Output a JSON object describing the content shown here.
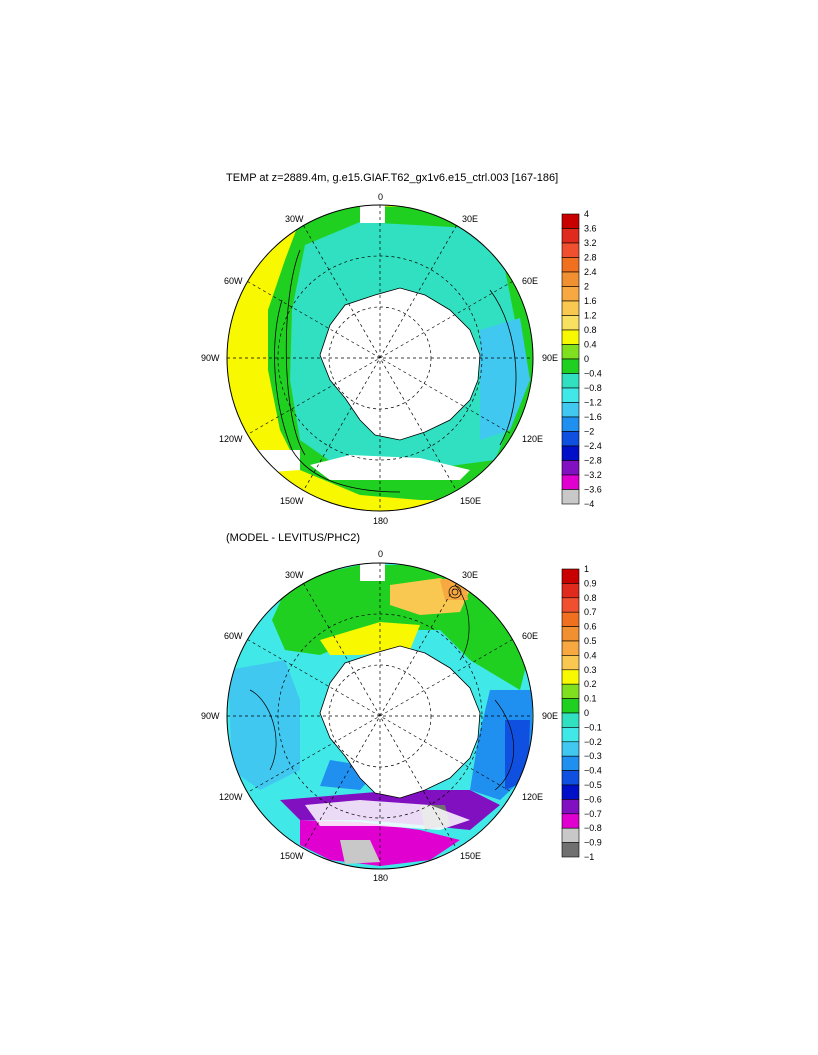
{
  "panels": [
    {
      "title": "TEMP at z=2889.4m, g.e15.GIAF.T62_gx1v6.e15_ctrl.003 [167-186]",
      "lon_labels": {
        "top": "0",
        "l30": "30W",
        "r30": "30E",
        "l60": "60W",
        "r60": "60E",
        "l90": "90W",
        "r90": "90E",
        "l120": "120W",
        "r120": "120E",
        "l150": "150W",
        "r150": "150E",
        "bottom": "180"
      },
      "colorbar": {
        "labels": [
          "4",
          "3.6",
          "3.2",
          "2.8",
          "2.4",
          "2",
          "1.6",
          "1.2",
          "0.8",
          "0.4",
          "0",
          "−0.4",
          "−0.8",
          "−1.2",
          "−1.6",
          "−2",
          "−2.4",
          "−2.8",
          "−3.2",
          "−3.6",
          "−4"
        ],
        "colors": [
          "#c80000",
          "#e02a1e",
          "#f05030",
          "#f07020",
          "#f09030",
          "#f8a840",
          "#f8c850",
          "#f8e060",
          "#f8f800",
          "#80e020",
          "#20d020",
          "#30e0c0",
          "#40e8e8",
          "#40c8f0",
          "#2090f0",
          "#1050e0",
          "#0010c8",
          "#8010c0",
          "#e000d0",
          "#c8c8c8",
          "#707070"
        ]
      }
    },
    {
      "title": "(MODEL - LEVITUS/PHC2)",
      "lon_labels": {
        "top": "0",
        "l30": "30W",
        "r30": "30E",
        "l60": "60W",
        "r60": "60E",
        "l90": "90W",
        "r90": "90E",
        "l120": "120W",
        "r120": "120E",
        "l150": "150W",
        "r150": "150E",
        "bottom": "180"
      },
      "colorbar": {
        "labels": [
          "1",
          "0.9",
          "0.8",
          "0.7",
          "0.6",
          "0.5",
          "0.4",
          "0.3",
          "0.2",
          "0.1",
          "0",
          "−0.1",
          "−0.2",
          "−0.3",
          "−0.4",
          "−0.5",
          "−0.6",
          "−0.7",
          "−0.8",
          "−0.9",
          "−1"
        ],
        "colors": [
          "#c80000",
          "#e02a1e",
          "#f05030",
          "#f07020",
          "#f09030",
          "#f8a840",
          "#f8c850",
          "#f8f800",
          "#80e020",
          "#20d020",
          "#30e0c0",
          "#40e8e8",
          "#40c8f0",
          "#2090f0",
          "#1050e0",
          "#0010c8",
          "#8010c0",
          "#e000d0",
          "#c8c8c8",
          "#707070",
          "#707070"
        ]
      }
    }
  ]
}
